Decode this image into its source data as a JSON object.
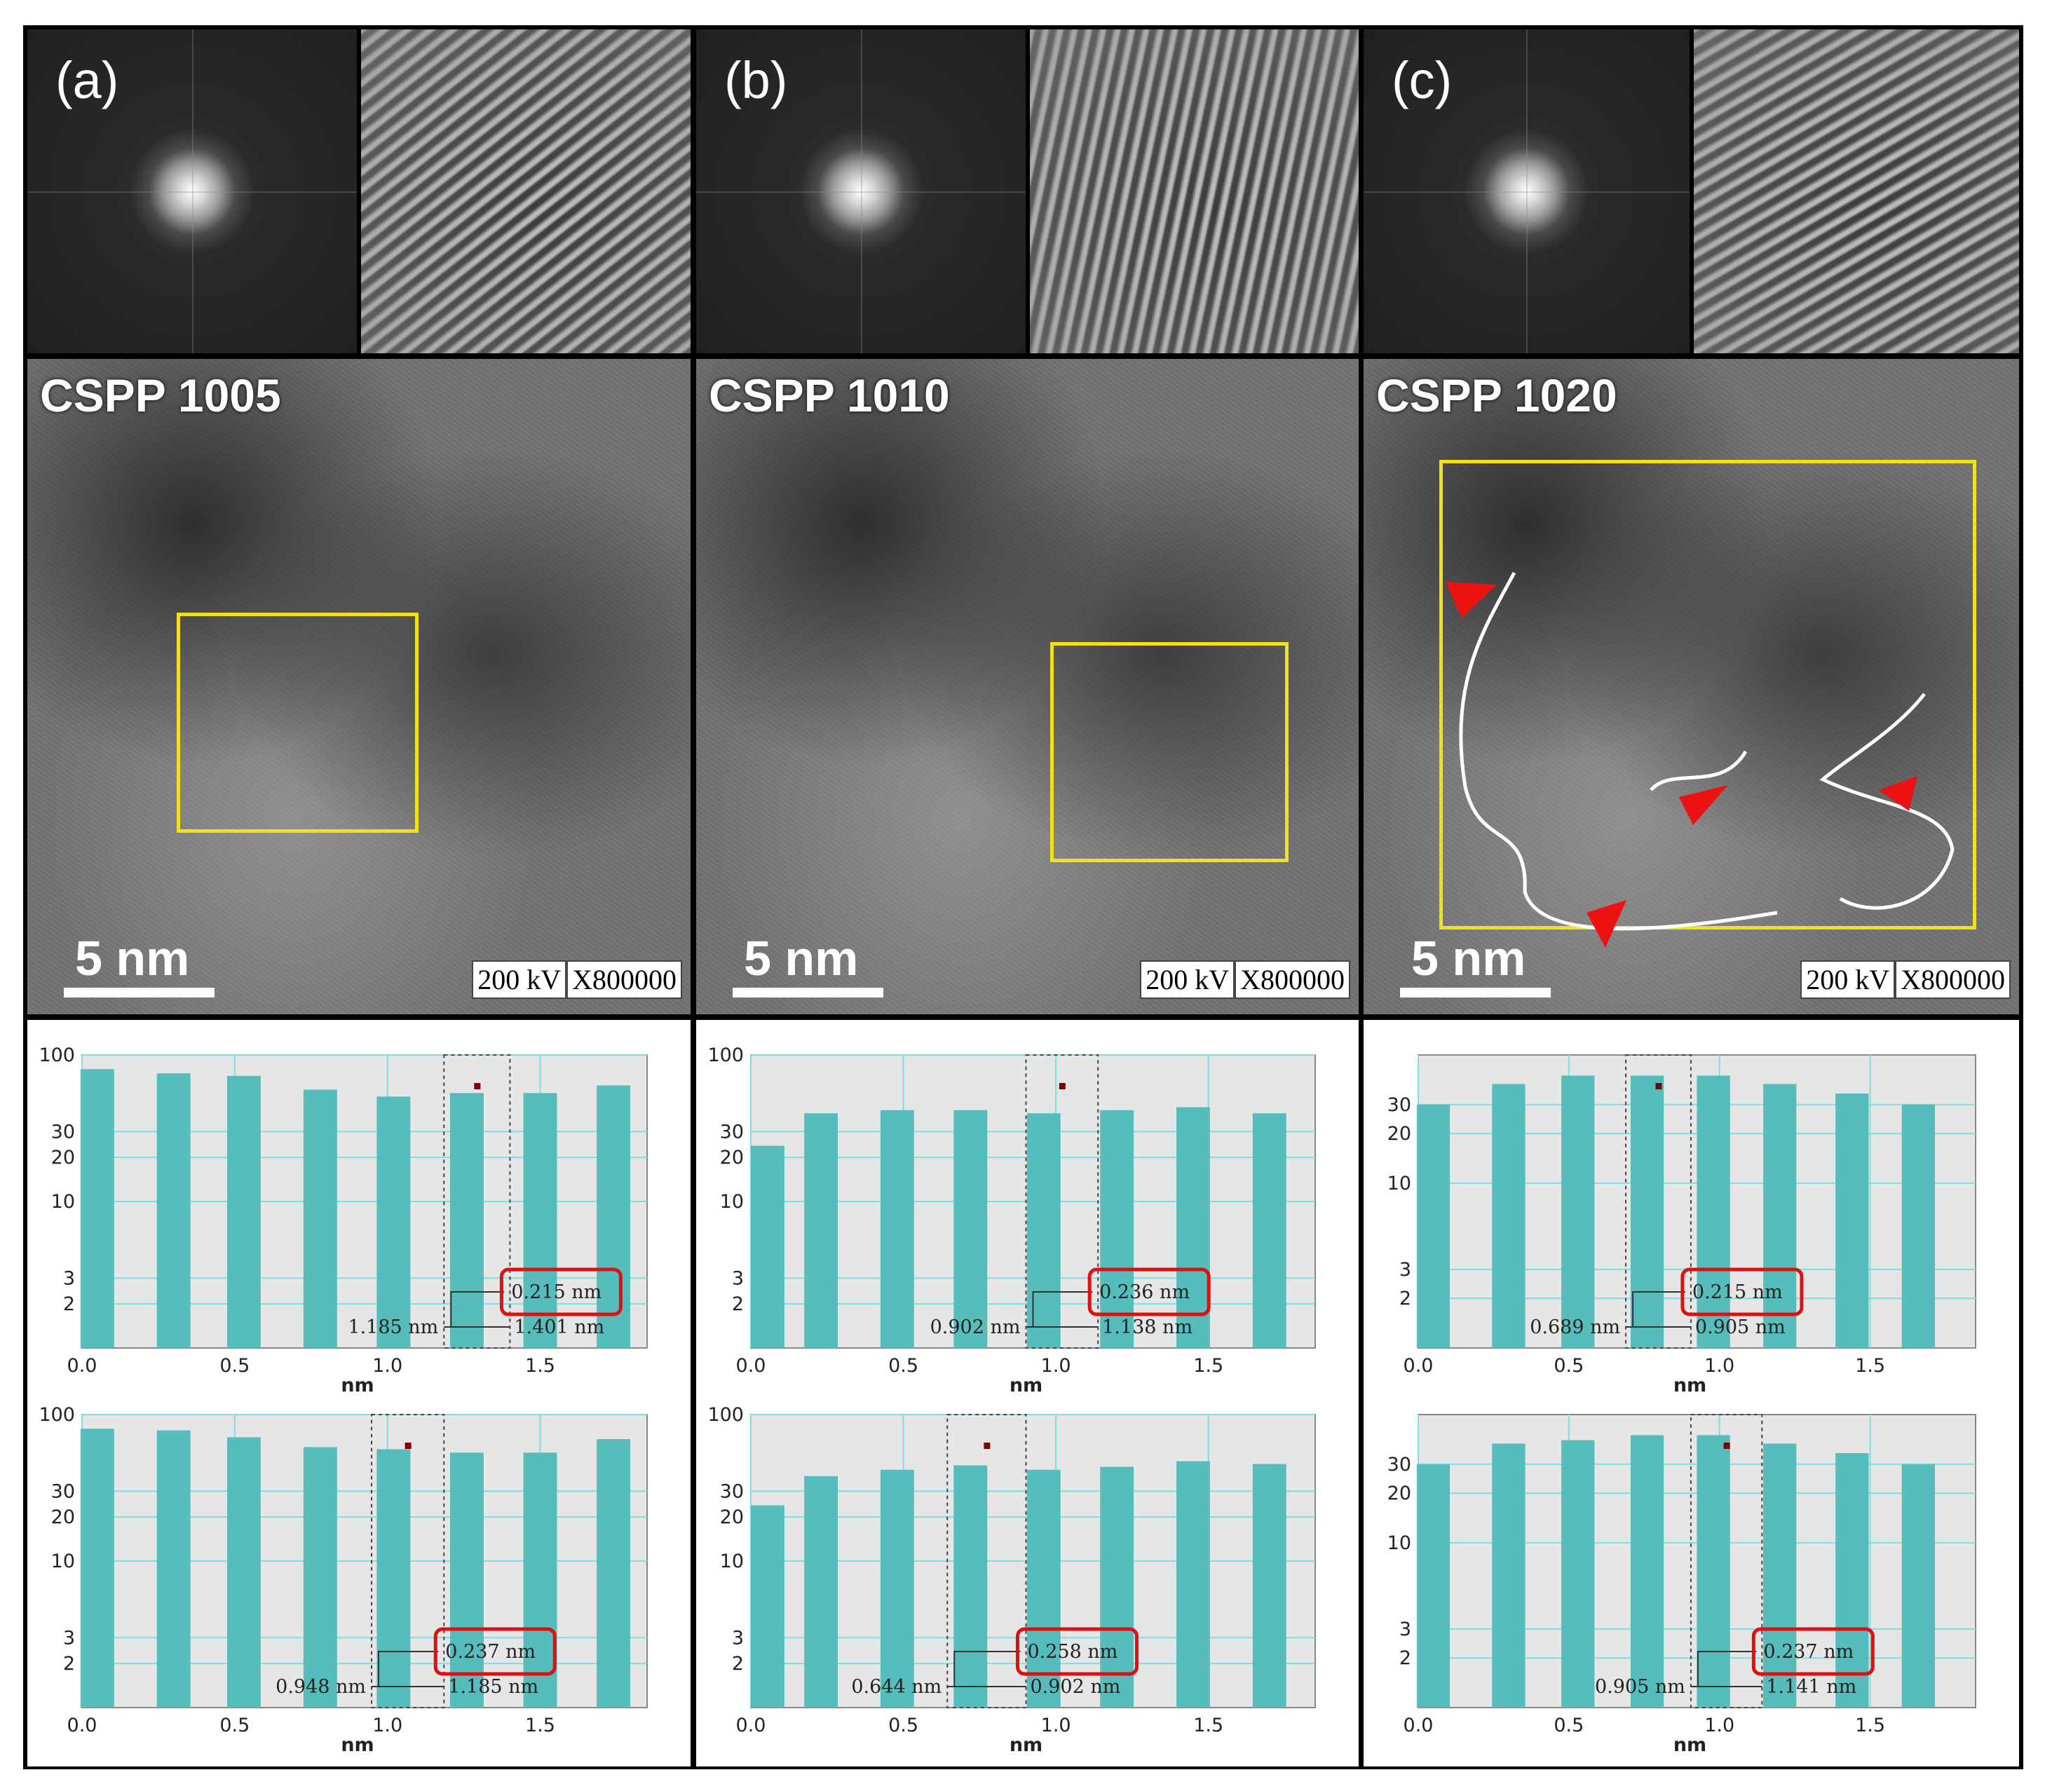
{
  "panels": [
    {
      "letter": "(a)",
      "sample": "CSPP 1005",
      "scale": "5 nm",
      "kv": "200 kV",
      "mag": "X800000"
    },
    {
      "letter": "(b)",
      "sample": "CSPP 1010",
      "scale": "5 nm",
      "kv": "200 kV",
      "mag": "X800000"
    },
    {
      "letter": "(c)",
      "sample": "CSPP 1020",
      "scale": "5 nm",
      "kv": "200 kV",
      "mag": "X800000"
    }
  ],
  "colors": {
    "bar": "#56bcbc",
    "grid": "#7fdede",
    "plot_bg": "#e6e6e6",
    "highlight": "#dd1111",
    "box": "#f0e020"
  },
  "chart_data": [
    {
      "type": "bar",
      "panel": "(a)",
      "row": 1,
      "xlabel": "nm",
      "xlim": [
        0,
        1.85
      ],
      "yscale": "log",
      "ylim": [
        1,
        100
      ],
      "yticks": [
        "100",
        "30",
        "20",
        "10",
        "3",
        "2"
      ],
      "xticks": [
        "0.0",
        "0.5",
        "1.0",
        "1.5"
      ],
      "x": [
        0.05,
        0.3,
        0.53,
        0.78,
        1.02,
        1.26,
        1.5,
        1.74
      ],
      "values": [
        80,
        75,
        72,
        58,
        52,
        55,
        55,
        62
      ],
      "cursor_left": "1.185 nm",
      "cursor_right": "1.401 nm",
      "measurement": "0.215 nm"
    },
    {
      "type": "bar",
      "panel": "(a)",
      "row": 2,
      "xlabel": "nm",
      "xlim": [
        0,
        1.85
      ],
      "yscale": "log",
      "ylim": [
        1,
        100
      ],
      "yticks": [
        "100",
        "30",
        "20",
        "10",
        "3",
        "2"
      ],
      "xticks": [
        "0.0",
        "0.5",
        "1.0",
        "1.5"
      ],
      "x": [
        0.05,
        0.3,
        0.53,
        0.78,
        1.02,
        1.26,
        1.5,
        1.74
      ],
      "values": [
        80,
        78,
        70,
        60,
        58,
        55,
        55,
        68
      ],
      "cursor_left": "0.948 nm",
      "cursor_right": "1.185 nm",
      "measurement": "0.237 nm"
    },
    {
      "type": "bar",
      "panel": "(b)",
      "row": 1,
      "xlabel": "nm",
      "xlim": [
        0,
        1.85
      ],
      "yscale": "log",
      "ylim": [
        1,
        100
      ],
      "yticks": [
        "100",
        "30",
        "20",
        "10",
        "3",
        "2"
      ],
      "xticks": [
        "0.0",
        "0.5",
        "1.0",
        "1.5"
      ],
      "x": [
        0.0,
        0.23,
        0.48,
        0.72,
        0.96,
        1.2,
        1.45,
        1.7
      ],
      "values": [
        24,
        40,
        42,
        42,
        40,
        42,
        44,
        40
      ],
      "cursor_left": "0.902 nm",
      "cursor_right": "1.138 nm",
      "measurement": "0.236 nm"
    },
    {
      "type": "bar",
      "panel": "(b)",
      "row": 2,
      "xlabel": "nm",
      "xlim": [
        0,
        1.85
      ],
      "yscale": "log",
      "ylim": [
        1,
        100
      ],
      "yticks": [
        "100",
        "30",
        "20",
        "10",
        "3",
        "2"
      ],
      "xticks": [
        "0.0",
        "0.5",
        "1.0",
        "1.5"
      ],
      "x": [
        0.0,
        0.23,
        0.48,
        0.72,
        0.96,
        1.2,
        1.45,
        1.7
      ],
      "values": [
        24,
        38,
        42,
        45,
        42,
        44,
        48,
        46
      ],
      "cursor_left": "0.644 nm",
      "cursor_right": "0.902 nm",
      "measurement": "0.258 nm"
    },
    {
      "type": "bar",
      "panel": "(c)",
      "row": 1,
      "xlabel": "nm",
      "xlim": [
        0,
        1.85
      ],
      "yscale": "log",
      "ylim": [
        1,
        60
      ],
      "yticks": [
        "30",
        "20",
        "10",
        "3",
        "2"
      ],
      "xticks": [
        "0.0",
        "0.5",
        "1.0",
        "1.5"
      ],
      "x": [
        0.05,
        0.3,
        0.53,
        0.76,
        0.98,
        1.2,
        1.44,
        1.66
      ],
      "values": [
        30,
        40,
        45,
        45,
        45,
        40,
        35,
        30
      ],
      "cursor_left": "0.689 nm",
      "cursor_right": "0.905 nm",
      "measurement": "0.215 nm"
    },
    {
      "type": "bar",
      "panel": "(c)",
      "row": 2,
      "xlabel": "nm",
      "xlim": [
        0,
        1.85
      ],
      "yscale": "log",
      "ylim": [
        1,
        60
      ],
      "yticks": [
        "30",
        "20",
        "10",
        "3",
        "2"
      ],
      "xticks": [
        "0.0",
        "0.5",
        "1.0",
        "1.5"
      ],
      "x": [
        0.05,
        0.3,
        0.53,
        0.76,
        0.98,
        1.2,
        1.44,
        1.66
      ],
      "values": [
        30,
        40,
        42,
        45,
        45,
        40,
        35,
        30
      ],
      "cursor_left": "0.905 nm",
      "cursor_right": "1.141 nm",
      "measurement": "0.237 nm"
    }
  ]
}
